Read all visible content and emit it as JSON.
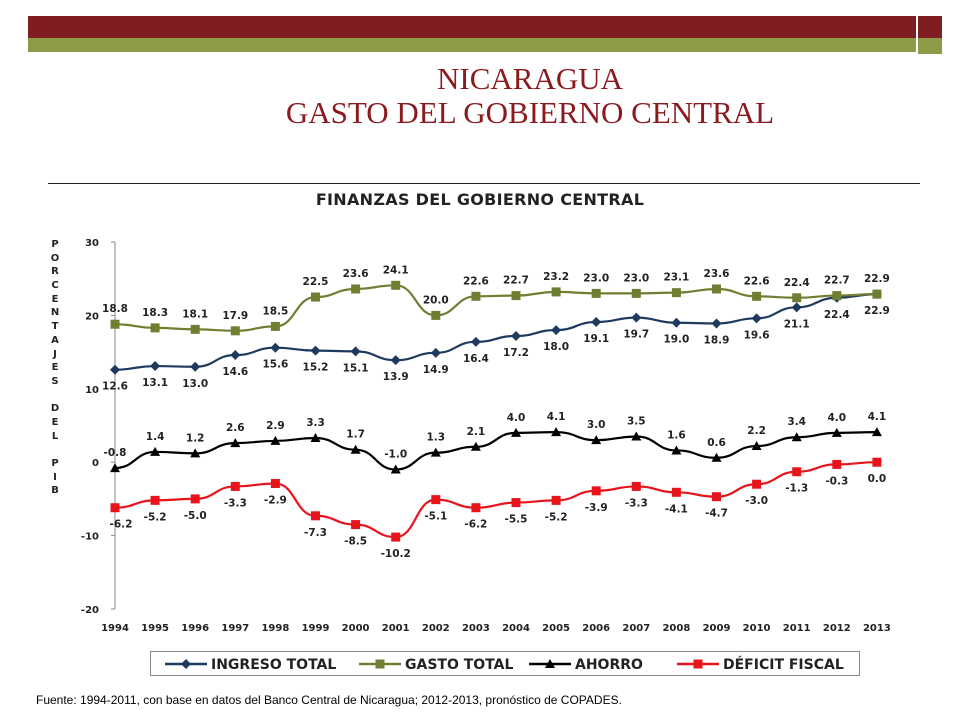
{
  "slide": {
    "title_line1": "NICARAGUA",
    "title_line2": "GASTO DEL GOBIERNO CENTRAL",
    "source": "Fuente: 1994-2011, con base en datos del Banco Central de Nicaragua; 2012-2013, pronóstico de COPADES."
  },
  "colors": {
    "bar_red": "#7f1d22",
    "bar_olive": "#8e9a46",
    "title": "#8b1a1f"
  },
  "chart_data": {
    "type": "line",
    "title": "FINANZAS DEL GOBIERNO CENTRAL",
    "ylabel": "PORCENTAJES DEL PIB",
    "xlabel": "",
    "ylim": [
      -20,
      30
    ],
    "yticks": [
      30,
      20,
      10,
      0,
      -10,
      -20
    ],
    "grid": false,
    "legend_position": "bottom",
    "categories": [
      "1994",
      "1995",
      "1996",
      "1997",
      "1998",
      "1999",
      "2000",
      "2001",
      "2002",
      "2003",
      "2004",
      "2005",
      "2006",
      "2007",
      "2008",
      "2009",
      "2010",
      "2011",
      "2012",
      "2013"
    ],
    "series": [
      {
        "name": "INGRESO TOTAL",
        "color": "#1f3a5f",
        "marker": "diamond",
        "values": [
          12.6,
          13.1,
          13.0,
          14.6,
          15.6,
          15.2,
          15.1,
          13.9,
          14.9,
          16.4,
          17.2,
          18.0,
          19.1,
          19.7,
          19.0,
          18.9,
          19.6,
          21.1,
          22.4,
          22.9
        ]
      },
      {
        "name": "GASTO TOTAL",
        "color": "#6e7f32",
        "marker": "square",
        "values": [
          18.8,
          18.3,
          18.1,
          17.9,
          18.5,
          22.5,
          23.6,
          24.1,
          20.0,
          22.6,
          22.7,
          23.2,
          23.0,
          23.0,
          23.1,
          23.6,
          22.6,
          22.4,
          22.7,
          22.9
        ]
      },
      {
        "name": "AHORRO",
        "color": "#000000",
        "marker": "triangle",
        "values": [
          -0.8,
          1.4,
          1.2,
          2.6,
          2.9,
          3.3,
          1.7,
          -1.0,
          1.3,
          2.1,
          4.0,
          4.1,
          3.0,
          3.5,
          1.6,
          0.6,
          2.2,
          3.4,
          4.0,
          4.1
        ]
      },
      {
        "name": "DÉFICIT FISCAL",
        "color": "#e8141b",
        "marker": "square",
        "values": [
          -6.2,
          -5.2,
          -5.0,
          -3.3,
          -2.9,
          -7.3,
          -8.5,
          -10.2,
          -5.1,
          -6.2,
          -5.5,
          -5.2,
          -3.9,
          -3.3,
          -4.1,
          -4.7,
          -3.0,
          -1.3,
          -0.3,
          0.0
        ]
      }
    ]
  }
}
